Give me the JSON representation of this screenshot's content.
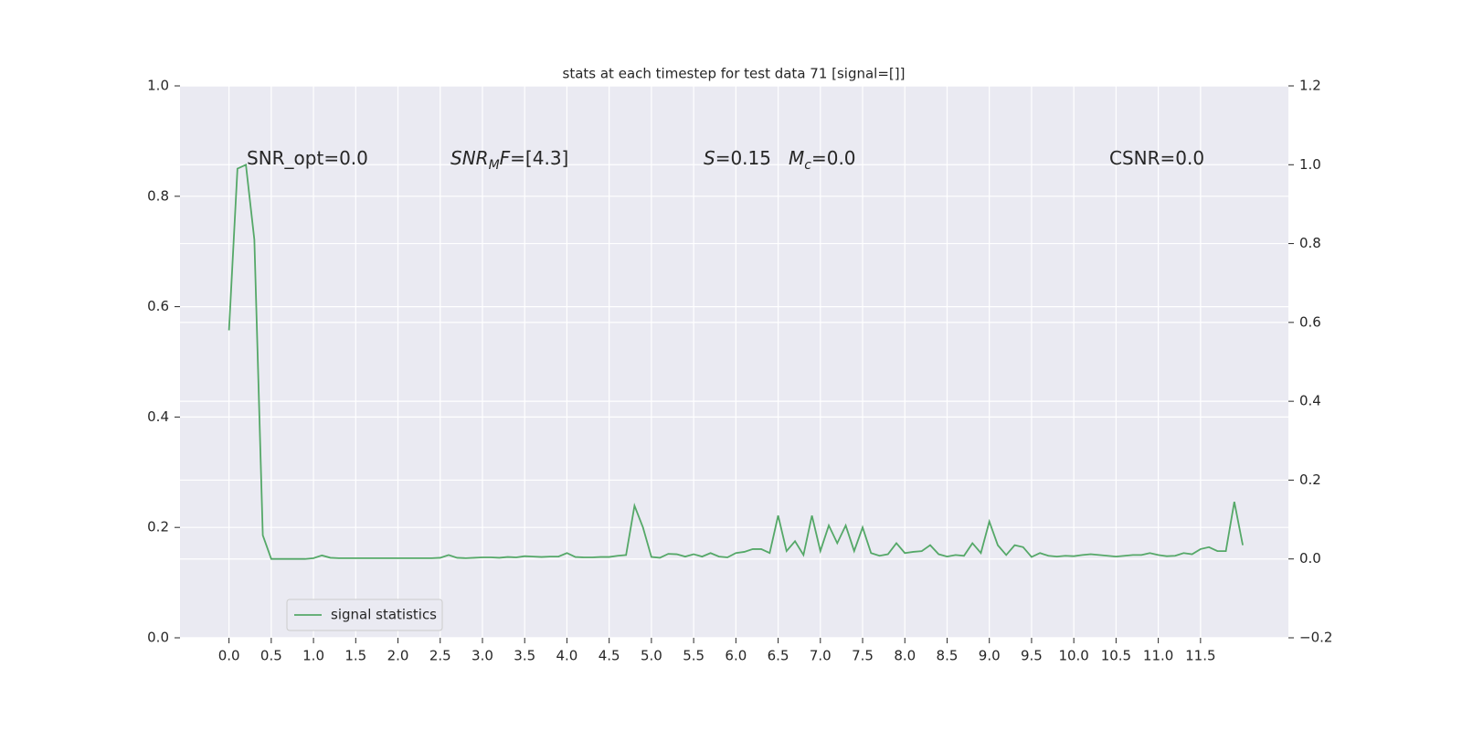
{
  "chart_data": {
    "type": "line",
    "title": "stats at each timestep for test data 71 [signal=[]]",
    "annotations": [
      [
        "SNR_opt=0.0"
      ],
      [
        "SNR",
        "M",
        "F",
        "=[4.3]"
      ],
      [
        "S",
        "=0.15"
      ],
      [
        "M",
        "c",
        "=0.0"
      ],
      [
        "CSNR=0.0"
      ]
    ],
    "x": [
      0,
      0.1,
      0.2,
      0.3,
      0.4,
      0.5,
      0.6,
      0.7,
      0.8,
      0.9,
      1,
      1.1,
      1.2,
      1.3,
      1.4,
      1.5,
      1.6,
      1.7,
      1.8,
      1.9,
      2,
      2.1,
      2.2,
      2.3,
      2.4,
      2.5,
      2.6,
      2.7,
      2.8,
      2.9,
      3,
      3.1,
      3.2,
      3.3,
      3.4,
      3.5,
      3.6,
      3.7,
      3.8,
      3.9,
      4,
      4.1,
      4.2,
      4.3,
      4.4,
      4.5,
      4.6,
      4.7,
      4.8,
      4.9,
      5,
      5.1,
      5.2,
      5.3,
      5.4,
      5.5,
      5.6,
      5.7,
      5.8,
      5.9,
      6,
      6.1,
      6.2,
      6.3,
      6.4,
      6.5,
      6.6,
      6.7,
      6.8,
      6.9,
      7,
      7.1,
      7.2,
      7.3,
      7.4,
      7.5,
      7.6,
      7.7,
      7.8,
      7.9,
      8,
      8.1,
      8.2,
      8.3,
      8.4,
      8.5,
      8.6,
      8.7,
      8.8,
      8.9,
      9,
      9.1,
      9.2,
      9.3,
      9.4,
      9.5,
      9.6,
      9.7,
      9.8,
      9.9,
      10,
      10.1,
      10.2,
      10.3,
      10.4,
      10.5,
      10.6,
      10.7,
      10.8,
      10.9,
      11,
      11.1,
      11.2,
      11.3,
      11.4,
      11.5,
      11.6,
      11.7,
      11.8,
      11.9,
      12
    ],
    "series": [
      {
        "name": "signal statistics",
        "color": "#55a868",
        "axis": "y2",
        "values": [
          0.58,
          0.99,
          1.0,
          0.81,
          0.06,
          0.0,
          0.0,
          0.0,
          0.0,
          0.0,
          0.002,
          0.009,
          0.003,
          0.002,
          0.002,
          0.002,
          0.002,
          0.002,
          0.002,
          0.002,
          0.002,
          0.002,
          0.002,
          0.002,
          0.002,
          0.003,
          0.01,
          0.003,
          0.002,
          0.003,
          0.004,
          0.004,
          0.003,
          0.005,
          0.004,
          0.007,
          0.006,
          0.005,
          0.006,
          0.006,
          0.015,
          0.005,
          0.004,
          0.004,
          0.005,
          0.005,
          0.008,
          0.01,
          0.135,
          0.08,
          0.005,
          0.003,
          0.013,
          0.012,
          0.006,
          0.012,
          0.006,
          0.015,
          0.006,
          0.004,
          0.015,
          0.018,
          0.025,
          0.025,
          0.015,
          0.11,
          0.02,
          0.045,
          0.01,
          0.11,
          0.02,
          0.085,
          0.04,
          0.085,
          0.02,
          0.08,
          0.015,
          0.008,
          0.012,
          0.04,
          0.015,
          0.018,
          0.02,
          0.035,
          0.012,
          0.006,
          0.01,
          0.008,
          0.04,
          0.015,
          0.095,
          0.035,
          0.01,
          0.035,
          0.03,
          0.005,
          0.015,
          0.008,
          0.006,
          0.008,
          0.007,
          0.01,
          0.012,
          0.01,
          0.008,
          0.006,
          0.008,
          0.01,
          0.01,
          0.015,
          0.01,
          0.007,
          0.008,
          0.015,
          0.012,
          0.025,
          0.03,
          0.02,
          0.02,
          0.145,
          0.035
        ]
      }
    ],
    "xlim": [
      -0.58,
      12.54
    ],
    "xticks": [
      {
        "value": 0,
        "label": "0.0"
      },
      0.5,
      {
        "value": 1,
        "label": "1.0"
      },
      1.5,
      {
        "value": 2,
        "label": "2.0"
      },
      2.5,
      {
        "value": 3,
        "label": "3.0"
      },
      3.5,
      {
        "value": 4,
        "label": "4.0"
      },
      4.5,
      {
        "value": 5,
        "label": "5.0"
      },
      5.5,
      {
        "value": 6,
        "label": "6.0"
      },
      6.5,
      {
        "value": 7,
        "label": "7.0"
      },
      7.5,
      {
        "value": 8,
        "label": "8.0"
      },
      8.5,
      {
        "value": 9,
        "label": "9.0"
      },
      9.5,
      {
        "value": 10,
        "label": "10.0"
      },
      10.5,
      {
        "value": 11,
        "label": "11.0"
      },
      11.5
    ],
    "ylim": [
      0,
      1
    ],
    "yticks": [
      {
        "value": 0,
        "label": "0.0"
      },
      0.2,
      0.4,
      0.6,
      0.8,
      {
        "value": 1,
        "label": "1.0"
      }
    ],
    "y2lim": [
      -0.2,
      1.2
    ],
    "y2ticks": [
      {
        "value": -0.2,
        "label": "−0.2"
      },
      {
        "value": 0,
        "label": "0.0"
      },
      0.2,
      0.4,
      0.6,
      0.8,
      {
        "value": 1,
        "label": "1.0"
      },
      1.2
    ],
    "grid": true,
    "legend_loc": "lower left"
  }
}
